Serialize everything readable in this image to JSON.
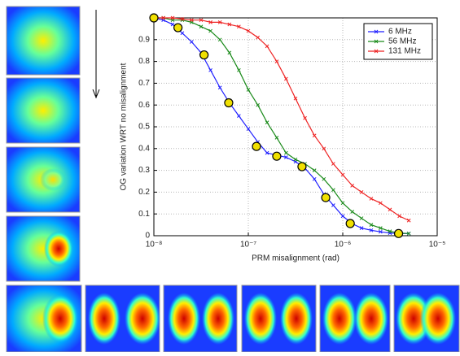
{
  "chart_data": {
    "type": "line",
    "xlabel": "PRM misalignment (rad)",
    "ylabel": "OG variation WRT no misalignment",
    "log_x": true,
    "grid": true,
    "legend": "upper right",
    "xlim": [
      1e-08,
      1e-05
    ],
    "ylim": [
      0,
      1
    ],
    "xticks": [
      {
        "value": 1e-08,
        "label": "10⁻⁸"
      },
      {
        "value": 1e-07,
        "label": "10⁻⁷"
      },
      {
        "value": 1e-06,
        "label": "10⁻⁶"
      },
      {
        "value": 1e-05,
        "label": "10⁻⁵"
      }
    ],
    "yticks": [
      0,
      0.1,
      0.2,
      0.3,
      0.4,
      0.5,
      0.6,
      0.7,
      0.8,
      0.9
    ],
    "x": [
      1e-08,
      1.26e-08,
      1.58e-08,
      2e-08,
      2.51e-08,
      3.16e-08,
      3.98e-08,
      5.01e-08,
      6.31e-08,
      7.94e-08,
      1e-07,
      1.26e-07,
      1.58e-07,
      2e-07,
      2.51e-07,
      3.16e-07,
      3.98e-07,
      5.01e-07,
      6.31e-07,
      7.94e-07,
      1e-06,
      1.26e-06,
      1.58e-06,
      2e-06,
      2.51e-06,
      3.16e-06,
      3.98e-06,
      5.01e-06
    ],
    "series": [
      {
        "name": "6 MHz",
        "color": "#1f1fff",
        "values": [
          1,
          0.99,
          0.97,
          0.93,
          0.89,
          0.84,
          0.76,
          0.68,
          0.61,
          0.55,
          0.49,
          0.43,
          0.38,
          0.37,
          0.36,
          0.34,
          0.31,
          0.26,
          0.19,
          0.14,
          0.09,
          0.055,
          0.035,
          0.025,
          0.018,
          0.012,
          0.01,
          0.01
        ]
      },
      {
        "name": "56 MHz",
        "color": "#1a8a1a",
        "values": [
          1,
          1,
          0.99,
          0.99,
          0.98,
          0.96,
          0.94,
          0.9,
          0.84,
          0.76,
          0.67,
          0.6,
          0.52,
          0.45,
          0.38,
          0.35,
          0.33,
          0.3,
          0.26,
          0.21,
          0.15,
          0.11,
          0.08,
          0.05,
          0.035,
          0.02,
          0.012,
          0.01
        ]
      },
      {
        "name": "131 MHz",
        "color": "#ee2222",
        "values": [
          1,
          1,
          1,
          0.995,
          0.99,
          0.99,
          0.98,
          0.98,
          0.97,
          0.96,
          0.94,
          0.91,
          0.87,
          0.8,
          0.72,
          0.63,
          0.54,
          0.46,
          0.4,
          0.33,
          0.28,
          0.23,
          0.2,
          0.17,
          0.15,
          0.12,
          0.09,
          0.07
        ]
      }
    ],
    "highlight_points": {
      "color": "#f0e000",
      "x": [
        1e-08,
        1.8e-08,
        3.4e-08,
        6.2e-08,
        1.22e-07,
        2e-07,
        3.7e-07,
        6.6e-07,
        1.2e-06,
        3.9e-06
      ],
      "y": [
        1,
        0.955,
        0.83,
        0.61,
        0.41,
        0.365,
        0.317,
        0.175,
        0.056,
        0.01
      ]
    }
  }
}
